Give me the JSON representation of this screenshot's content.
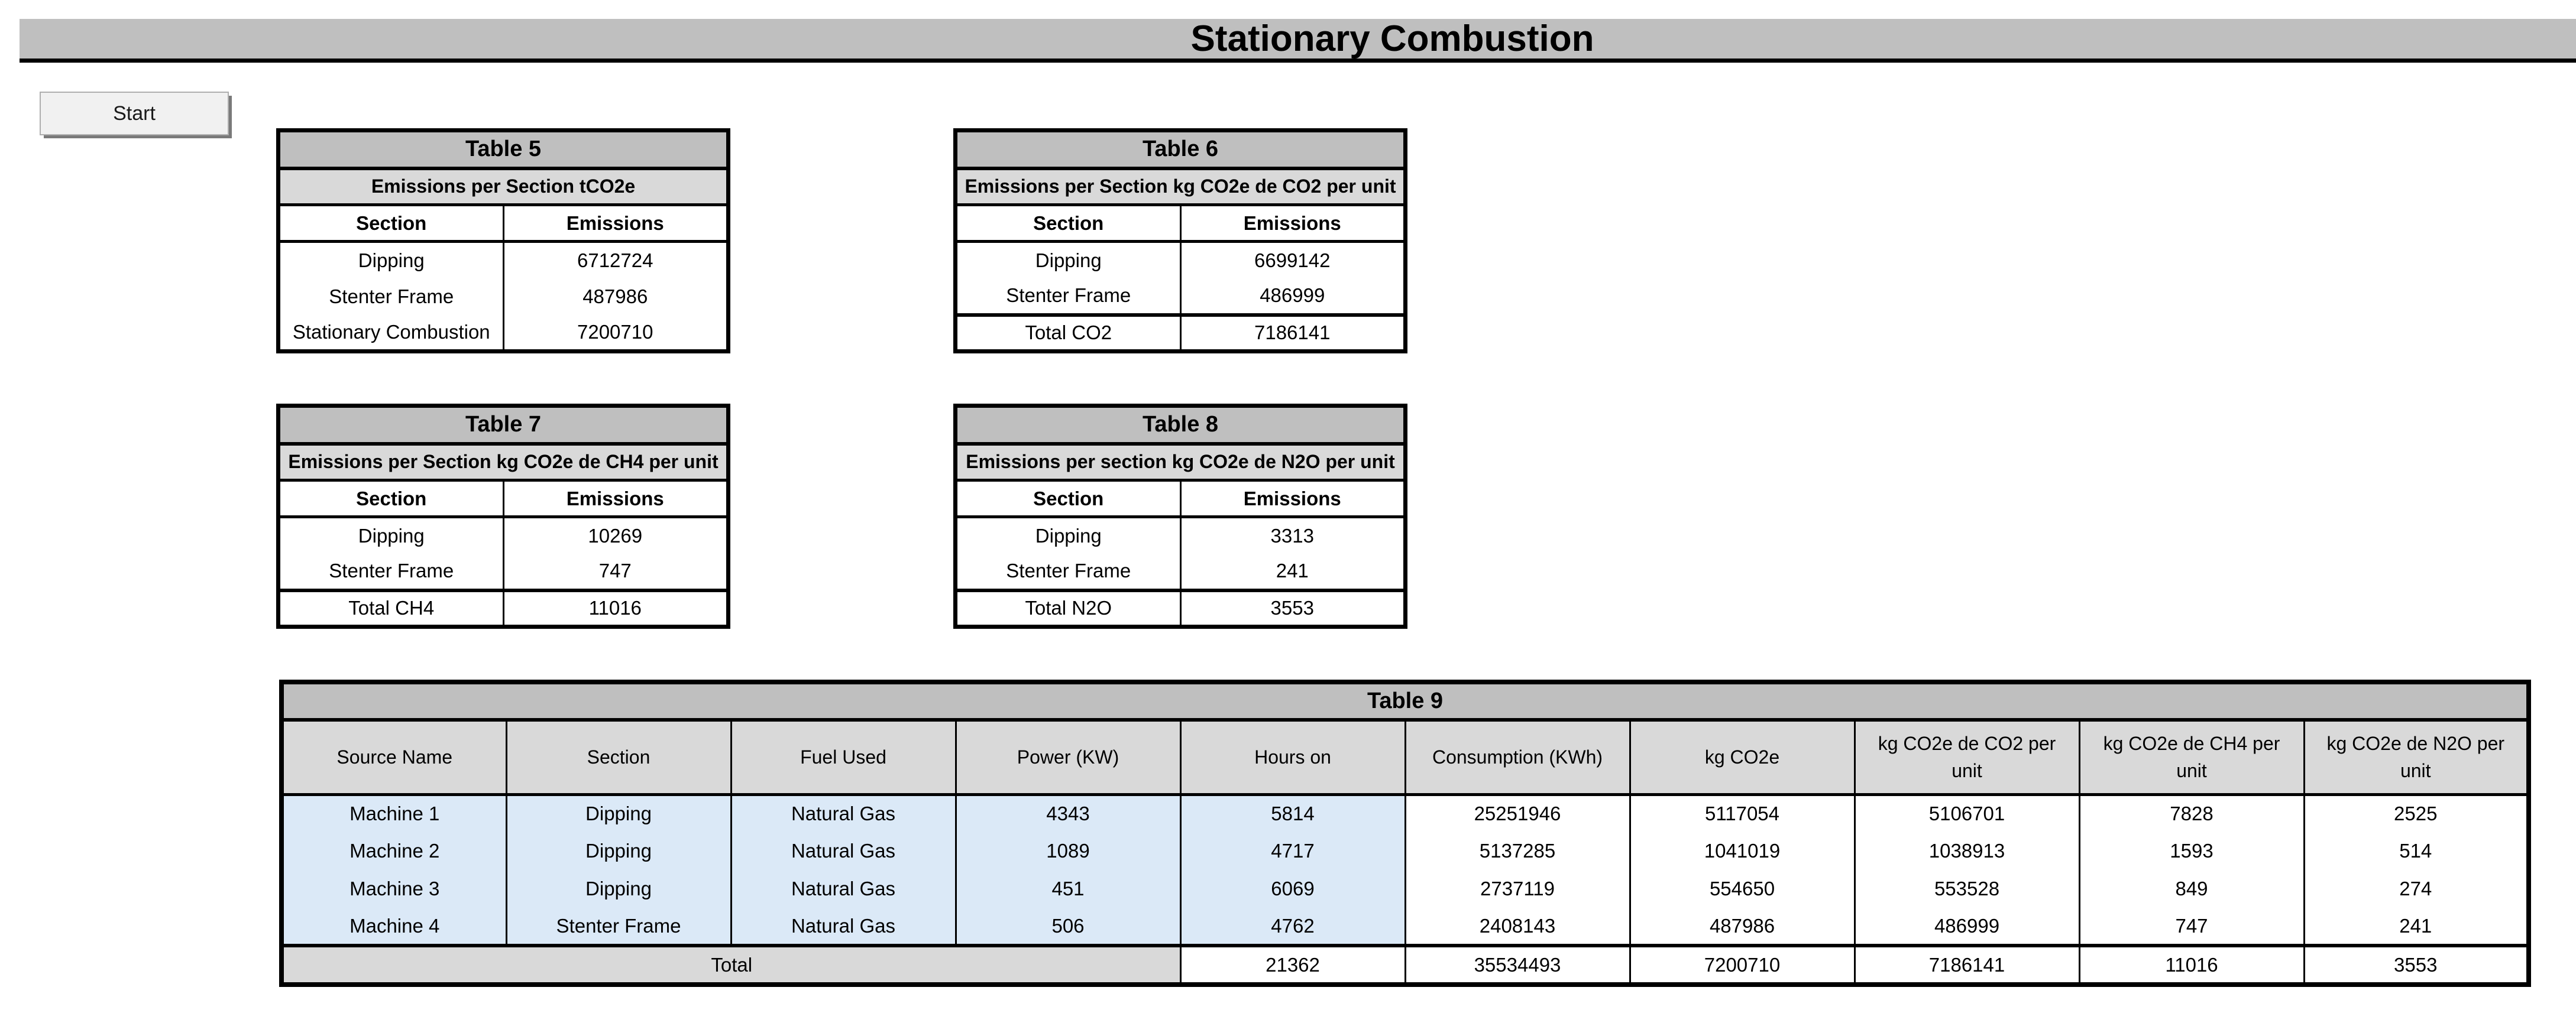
{
  "page": {
    "title": "Stationary Combustion"
  },
  "toolbar": {
    "start_label": "Start"
  },
  "small_tables": [
    {
      "title": "Table 5",
      "subtitle": "Emissions per Section tCO2e",
      "columns": [
        "Section",
        "Emissions"
      ],
      "rows": [
        [
          "Dipping",
          "6712724"
        ],
        [
          "Stenter Frame",
          "487986"
        ],
        [
          "Stationary Combustion",
          "7200710"
        ]
      ]
    },
    {
      "title": "Table 6",
      "subtitle": "Emissions per Section kg CO2e de CO2 per unit",
      "columns": [
        "Section",
        "Emissions"
      ],
      "rows": [
        [
          "Dipping",
          "6699142"
        ],
        [
          "Stenter Frame",
          "486999"
        ],
        [
          "Total CO2",
          "7186141"
        ]
      ]
    },
    {
      "title": "Table 7",
      "subtitle": "Emissions per Section kg CO2e de CH4 per unit",
      "columns": [
        "Section",
        "Emissions"
      ],
      "rows": [
        [
          "Dipping",
          "10269"
        ],
        [
          "Stenter Frame",
          "747"
        ],
        [
          "Total CH4",
          "11016"
        ]
      ]
    },
    {
      "title": "Table 8",
      "subtitle": "Emissions per section kg CO2e de N2O per unit",
      "columns": [
        "Section",
        "Emissions"
      ],
      "rows": [
        [
          "Dipping",
          "3313"
        ],
        [
          "Stenter Frame",
          "241"
        ],
        [
          "Total N2O",
          "3553"
        ]
      ]
    }
  ],
  "table9": {
    "title": "Table 9",
    "columns": [
      "Source Name",
      "Section",
      "Fuel Used",
      "Power (KW)",
      "Hours on",
      "Consumption (KWh)",
      "kg CO2e",
      "kg CO2e de CO2 per unit",
      "kg CO2e de CH4 per unit",
      "kg CO2e de N2O per unit"
    ],
    "rows": [
      [
        "Machine 1",
        "Dipping",
        "Natural Gas",
        "4343",
        "5814",
        "25251946",
        "5117054",
        "5106701",
        "7828",
        "2525"
      ],
      [
        "Machine 2",
        "Dipping",
        "Natural Gas",
        "1089",
        "4717",
        "5137285",
        "1041019",
        "1038913",
        "1593",
        "514"
      ],
      [
        "Machine 3",
        "Dipping",
        "Natural Gas",
        "451",
        "6069",
        "2737119",
        "554650",
        "553528",
        "849",
        "274"
      ],
      [
        "Machine 4",
        "Stenter Frame",
        "Natural Gas",
        "506",
        "4762",
        "2408143",
        "487986",
        "486999",
        "747",
        "241"
      ]
    ],
    "total_label": "Total",
    "totals": [
      "21362",
      "35534493",
      "7200710",
      "7186141",
      "11016",
      "3553"
    ]
  },
  "colors": {
    "title_bar_gray": "#bfbfbf",
    "table_header_gray": "#bfbfbf",
    "subheader_gray": "#d9d9d9",
    "row_highlight_blue": "#dbe9f7"
  }
}
